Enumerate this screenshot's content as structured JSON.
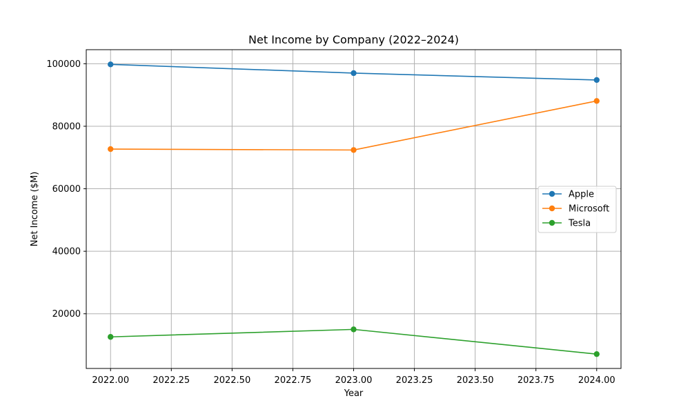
{
  "chart_data": {
    "type": "line",
    "title": "Net Income by Company (2022–2024)",
    "xlabel": "Year",
    "ylabel": "Net Income ($M)",
    "x": [
      2022,
      2023,
      2024
    ],
    "xlim": [
      2021.9,
      2024.1
    ],
    "ylim": [
      2500,
      104500
    ],
    "xticks": [
      2022.0,
      2022.25,
      2022.5,
      2022.75,
      2023.0,
      2023.25,
      2023.5,
      2023.75,
      2024.0
    ],
    "xtick_labels": [
      "2022.00",
      "2022.25",
      "2022.50",
      "2022.75",
      "2023.00",
      "2023.25",
      "2023.50",
      "2023.75",
      "2024.00"
    ],
    "yticks": [
      20000,
      40000,
      60000,
      80000,
      100000
    ],
    "ytick_labels": [
      "20000",
      "40000",
      "60000",
      "80000",
      "100000"
    ],
    "grid": true,
    "legend_position": "center-right",
    "series": [
      {
        "name": "Apple",
        "color": "#1f77b4",
        "values": [
          99800,
          97000,
          94800
        ]
      },
      {
        "name": "Microsoft",
        "color": "#ff7f0e",
        "values": [
          72700,
          72400,
          88100
        ]
      },
      {
        "name": "Tesla",
        "color": "#2ca02c",
        "values": [
          12600,
          15000,
          7100
        ]
      }
    ]
  }
}
